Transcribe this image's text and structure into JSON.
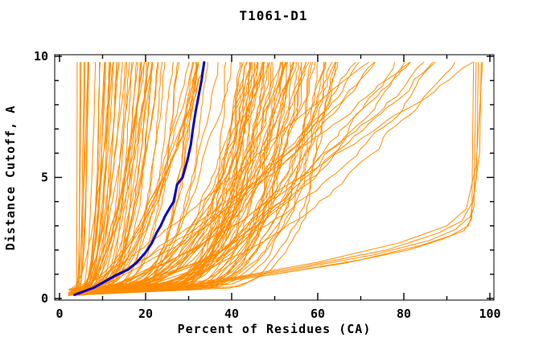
{
  "page": {
    "background": "#FFFFFF"
  },
  "chart_data": {
    "type": "line",
    "title": "T1061-D1",
    "xlabel": "Percent of Residues (CA)",
    "ylabel": "Distance Cutoff, A",
    "xlim": [
      0,
      100
    ],
    "ylim": [
      0,
      10
    ],
    "x_major_ticks": [
      0,
      20,
      40,
      60,
      80,
      100
    ],
    "x_minor_ticks": [
      10,
      30,
      50,
      70,
      90
    ],
    "y_major_ticks": [
      0,
      5,
      10
    ],
    "y_minor_ticks": [
      1,
      2,
      3,
      4,
      6,
      7,
      8,
      9
    ],
    "grid": false,
    "legend": "none",
    "tick_style": "inward-mirrored",
    "colors": {
      "prediction": "#FF8C00",
      "highlight": "#0000CC",
      "frame": "#000000",
      "background": "#FFFFFF",
      "text": "#000000"
    },
    "cutoff_plot_range": [
      0.12,
      9.75
    ],
    "highlight_series": {
      "name": "highlighted-model",
      "color": "#0000CC",
      "stroke_width": 3,
      "points": [
        [
          3.5,
          0.15
        ],
        [
          5,
          0.25
        ],
        [
          8,
          0.45
        ],
        [
          10.5,
          0.7
        ],
        [
          13,
          0.95
        ],
        [
          16,
          1.2
        ],
        [
          18,
          1.5
        ],
        [
          20,
          1.9
        ],
        [
          21.5,
          2.3
        ],
        [
          22.5,
          2.7
        ],
        [
          23.5,
          3.0
        ],
        [
          24.5,
          3.4
        ],
        [
          25.5,
          3.7
        ],
        [
          26.5,
          4.0
        ],
        [
          27.3,
          4.7
        ],
        [
          28.6,
          5.0
        ],
        [
          29.7,
          5.7
        ],
        [
          30.5,
          6.35
        ],
        [
          31.0,
          7.0
        ],
        [
          31.6,
          7.7
        ],
        [
          32.3,
          8.35
        ],
        [
          33.0,
          9.0
        ],
        [
          33.6,
          9.75
        ]
      ]
    },
    "knee_series": [
      {
        "points": [
          [
            13,
            0.25
          ],
          [
            30,
            0.5
          ],
          [
            50,
            1.0
          ],
          [
            70,
            1.6
          ],
          [
            84,
            2.2
          ],
          [
            91,
            2.6
          ],
          [
            95,
            3.0
          ],
          [
            96.3,
            3.8
          ],
          [
            96.8,
            9.75
          ]
        ]
      },
      {
        "points": [
          [
            14,
            0.3
          ],
          [
            33,
            0.6
          ],
          [
            53,
            1.15
          ],
          [
            73,
            1.8
          ],
          [
            86,
            2.4
          ],
          [
            92,
            2.85
          ],
          [
            95.5,
            3.4
          ],
          [
            96.9,
            5.0
          ],
          [
            97.3,
            9.75
          ]
        ]
      },
      {
        "points": [
          [
            15,
            0.33
          ],
          [
            36,
            0.7
          ],
          [
            56,
            1.3
          ],
          [
            76,
            2.0
          ],
          [
            88,
            2.7
          ],
          [
            93.5,
            3.2
          ],
          [
            96,
            4.0
          ],
          [
            97.6,
            6.0
          ],
          [
            98,
            9.75
          ]
        ]
      },
      {
        "points": [
          [
            12,
            0.22
          ],
          [
            28,
            0.45
          ],
          [
            46,
            0.9
          ],
          [
            66,
            1.45
          ],
          [
            81,
            2.0
          ],
          [
            89,
            2.45
          ],
          [
            94,
            2.8
          ],
          [
            95.8,
            3.3
          ],
          [
            96.2,
            9.75
          ]
        ]
      },
      {
        "points": [
          [
            16,
            0.38
          ],
          [
            40,
            0.85
          ],
          [
            60,
            1.5
          ],
          [
            79,
            2.3
          ],
          [
            90,
            3.0
          ],
          [
            94.5,
            3.7
          ],
          [
            96.8,
            5.5
          ],
          [
            98.3,
            9.75
          ]
        ]
      }
    ],
    "generated_families": [
      {
        "name": "left-steep-cluster",
        "count": 62,
        "x_top_range": [
          4,
          36
        ],
        "shape_range": [
          1.8,
          5.5
        ],
        "x_start_range": [
          1.5,
          5.5
        ],
        "distribution": "low-biased"
      },
      {
        "name": "mid-dense-band",
        "count": 60,
        "x_top_range": [
          38,
          66
        ],
        "shape_range": [
          2.5,
          8.0
        ],
        "x_start_range": [
          2.0,
          6.0
        ],
        "distribution": "triangular"
      },
      {
        "name": "right-sparse",
        "count": 14,
        "x_top_range": [
          66,
          93
        ],
        "shape_range": [
          1.1,
          2.2
        ],
        "x_start_range": [
          2.0,
          6.0
        ],
        "distribution": "uniform"
      }
    ],
    "seed": 1061,
    "prediction_stroke_width": 1
  }
}
